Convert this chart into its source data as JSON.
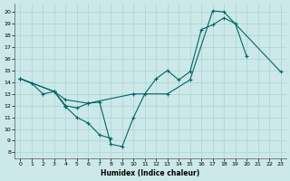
{
  "xlabel": "Humidex (Indice chaleur)",
  "bg_color": "#cce8e8",
  "grid_color": "#aad4d4",
  "line_color": "#006666",
  "xlim": [
    -0.5,
    23.5
  ],
  "ylim": [
    7.5,
    20.7
  ],
  "xticks": [
    0,
    1,
    2,
    3,
    4,
    5,
    6,
    7,
    8,
    9,
    10,
    11,
    12,
    13,
    14,
    15,
    16,
    17,
    18,
    19,
    20,
    21,
    22,
    23
  ],
  "yticks": [
    8,
    9,
    10,
    11,
    12,
    13,
    14,
    15,
    16,
    17,
    18,
    19,
    20
  ],
  "s1x": [
    0,
    1,
    2,
    3,
    4,
    5,
    6,
    7,
    8,
    9,
    10,
    11,
    12,
    13,
    14,
    15,
    16,
    17,
    18,
    19,
    20
  ],
  "s1y": [
    14.3,
    13.9,
    13.0,
    13.2,
    12.0,
    11.8,
    12.2,
    12.3,
    8.7,
    8.5,
    11.0,
    13.0,
    14.3,
    15.0,
    14.2,
    14.9,
    18.5,
    18.9,
    19.5,
    19.0,
    16.2
  ],
  "s2x": [
    0,
    3,
    4,
    5,
    6,
    7,
    8
  ],
  "s2y": [
    14.3,
    13.2,
    11.9,
    11.0,
    10.5,
    9.5,
    9.2
  ],
  "s3x": [
    0,
    3,
    4,
    6,
    10,
    13,
    15,
    17,
    18,
    23
  ],
  "s3y": [
    14.3,
    13.2,
    12.5,
    12.2,
    13.0,
    13.0,
    14.2,
    20.1,
    20.0,
    14.9
  ]
}
